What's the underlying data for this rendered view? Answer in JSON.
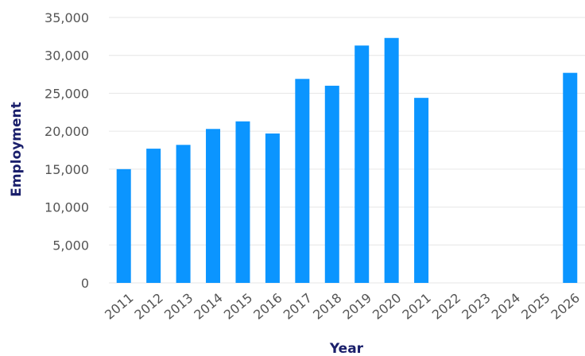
{
  "chart_data": {
    "type": "bar",
    "xlabel": "Year",
    "ylabel": "Employment",
    "ylim": [
      0,
      35000
    ],
    "yticks": [
      0,
      5000,
      10000,
      15000,
      20000,
      25000,
      30000,
      35000
    ],
    "ytick_labels": [
      "0",
      "5,000",
      "10,000",
      "15,000",
      "20,000",
      "25,000",
      "30,000",
      "35,000"
    ],
    "categories": [
      "2011",
      "2012",
      "2013",
      "2014",
      "2015",
      "2016",
      "2017",
      "2018",
      "2019",
      "2020",
      "2021",
      "2022",
      "2023",
      "2024",
      "2025",
      "2026"
    ],
    "values": [
      15000,
      17700,
      18200,
      20300,
      21300,
      19700,
      26900,
      26000,
      31300,
      32300,
      24400,
      null,
      null,
      null,
      null,
      27700
    ],
    "grid": true,
    "legend": "none",
    "bar_color": "#0b95ff"
  }
}
